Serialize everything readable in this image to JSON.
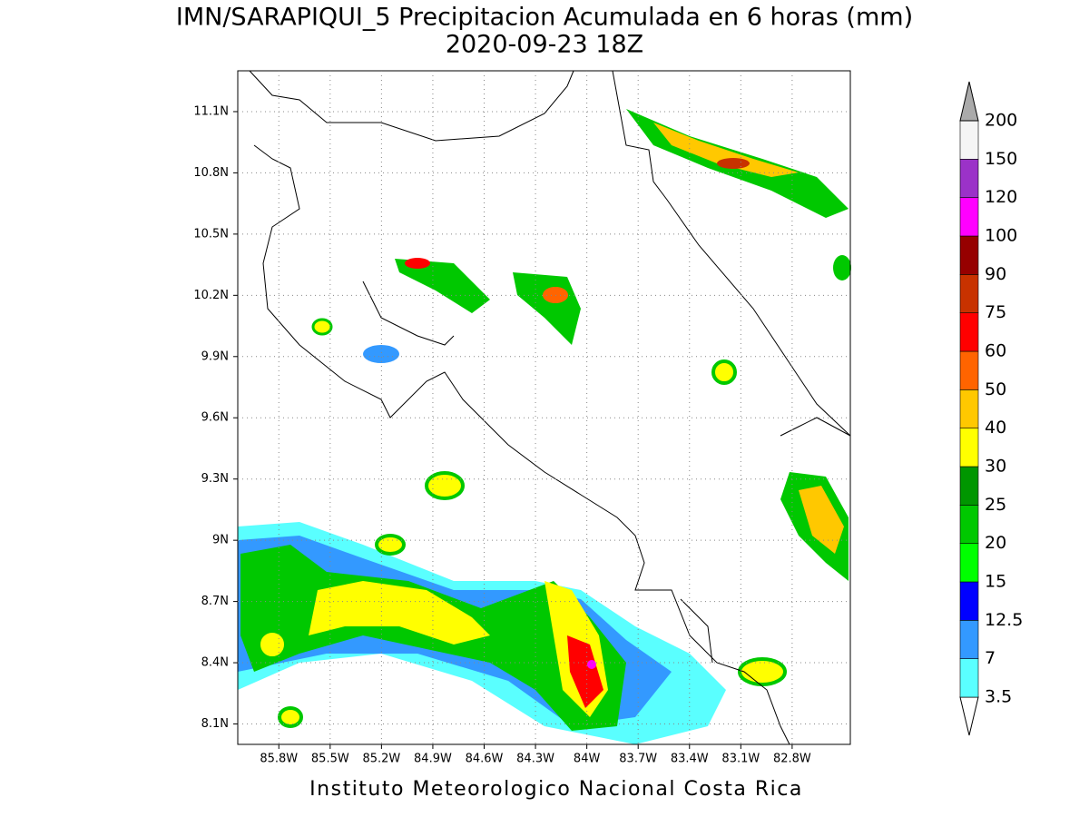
{
  "title": "IMN/SARAPIQUI_5 Precipitacion Acumulada en 6 horas (mm)",
  "subtitle": "2020-09-23 18Z",
  "footer": "Instituto Meteorologico Nacional Costa Rica",
  "map": {
    "xlim": [
      -86.04,
      -82.46
    ],
    "ylim": [
      8.0,
      11.3
    ],
    "grid": true,
    "xticks": [
      {
        "value": -85.8,
        "label": "85.8W"
      },
      {
        "value": -85.5,
        "label": "85.5W"
      },
      {
        "value": -85.2,
        "label": "85.2W"
      },
      {
        "value": -84.9,
        "label": "84.9W"
      },
      {
        "value": -84.6,
        "label": "84.6W"
      },
      {
        "value": -84.3,
        "label": "84.3W"
      },
      {
        "value": -84.0,
        "label": "84W"
      },
      {
        "value": -83.7,
        "label": "83.7W"
      },
      {
        "value": -83.4,
        "label": "83.4W"
      },
      {
        "value": -83.1,
        "label": "83.1W"
      },
      {
        "value": -82.8,
        "label": "82.8W"
      }
    ],
    "yticks": [
      {
        "value": 8.1,
        "label": "8.1N"
      },
      {
        "value": 8.4,
        "label": "8.4N"
      },
      {
        "value": 8.7,
        "label": "8.7N"
      },
      {
        "value": 9.0,
        "label": "9N"
      },
      {
        "value": 9.3,
        "label": "9.3N"
      },
      {
        "value": 9.6,
        "label": "9.6N"
      },
      {
        "value": 9.9,
        "label": "9.9N"
      },
      {
        "value": 10.2,
        "label": "10.2N"
      },
      {
        "value": 10.5,
        "label": "10.5N"
      },
      {
        "value": 10.8,
        "label": "10.8N"
      },
      {
        "value": 11.1,
        "label": "11.1N"
      }
    ]
  },
  "colorbar": {
    "levels": [
      3.5,
      7,
      12.5,
      15,
      20,
      25,
      30,
      40,
      50,
      60,
      75,
      90,
      100,
      120,
      150,
      200
    ],
    "colors": [
      "#ffffff",
      "#5affff",
      "#3399ff",
      "#0000ff",
      "#00ff00",
      "#00c800",
      "#009600",
      "#ffff00",
      "#ffc800",
      "#ff6400",
      "#ff0000",
      "#c83200",
      "#960000",
      "#ff00ff",
      "#9b32c8",
      "#f5f5f5",
      "#aaaaaa"
    ]
  }
}
